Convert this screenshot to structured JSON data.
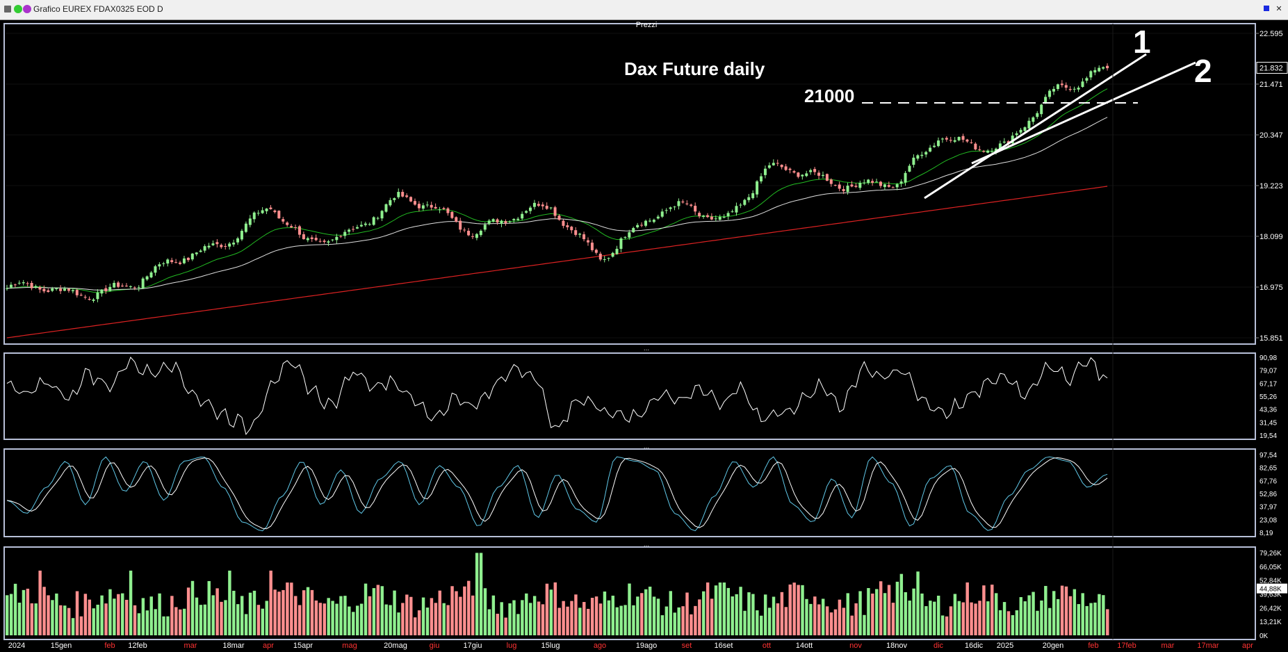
{
  "window": {
    "title": "Grafico EUREX FDAX0325 EOD D"
  },
  "panels": {
    "price_header": "Prezzi",
    "separator": "..."
  },
  "annotations": {
    "title": "Dax Future daily",
    "level_label": "21000",
    "trendline_1": "1",
    "trendline_2": "2"
  },
  "axes": {
    "price_ticks": [
      "22.595",
      "21.471",
      "20.347",
      "19.223",
      "18.099",
      "16.975",
      "15.851"
    ],
    "last_price": "21.832",
    "rsi_ticks": [
      "90,98",
      "79,07",
      "67,17",
      "55,26",
      "43,36",
      "31,45",
      "19,54"
    ],
    "stoch_ticks": [
      "97,54",
      "82,65",
      "67,76",
      "52,86",
      "37,97",
      "23,08",
      "8,19"
    ],
    "volume_ticks": [
      "79,26K",
      "66,05K",
      "52,84K",
      "39,63K",
      "26,42K",
      "13,21K",
      "0K"
    ],
    "last_volume": "44,88K",
    "dates": [
      {
        "label": "2024",
        "color": "#ffffff"
      },
      {
        "label": "15gen",
        "color": "#ffffff"
      },
      {
        "label": "feb",
        "color": "#ff3333"
      },
      {
        "label": "12feb",
        "color": "#ffffff"
      },
      {
        "label": "mar",
        "color": "#ff3333"
      },
      {
        "label": "18mar",
        "color": "#ffffff"
      },
      {
        "label": "apr",
        "color": "#ff3333"
      },
      {
        "label": "15apr",
        "color": "#ffffff"
      },
      {
        "label": "mag",
        "color": "#ff3333"
      },
      {
        "label": "20mag",
        "color": "#ffffff"
      },
      {
        "label": "giu",
        "color": "#ff3333"
      },
      {
        "label": "17giu",
        "color": "#ffffff"
      },
      {
        "label": "lug",
        "color": "#ff3333"
      },
      {
        "label": "15lug",
        "color": "#ffffff"
      },
      {
        "label": "ago",
        "color": "#ff3333"
      },
      {
        "label": "19ago",
        "color": "#ffffff"
      },
      {
        "label": "set",
        "color": "#ff3333"
      },
      {
        "label": "16set",
        "color": "#ffffff"
      },
      {
        "label": "ott",
        "color": "#ff3333"
      },
      {
        "label": "14ott",
        "color": "#ffffff"
      },
      {
        "label": "nov",
        "color": "#ff3333"
      },
      {
        "label": "18nov",
        "color": "#ffffff"
      },
      {
        "label": "dic",
        "color": "#ff3333"
      },
      {
        "label": "16dic",
        "color": "#ffffff"
      },
      {
        "label": "2025",
        "color": "#ffffff"
      },
      {
        "label": "20gen",
        "color": "#ffffff"
      },
      {
        "label": "feb",
        "color": "#ff3333"
      },
      {
        "label": "17feb",
        "color": "#ff3333"
      },
      {
        "label": "mar",
        "color": "#ff3333"
      },
      {
        "label": "17mar",
        "color": "#ff3333"
      },
      {
        "label": "apr",
        "color": "#ff3333"
      }
    ]
  },
  "chart_data": [
    {
      "type": "candlestick",
      "title": "Dax Future daily",
      "ylim": [
        15851,
        22595
      ],
      "close_keypoints": [
        {
          "x": "2024",
          "y": 16950
        },
        {
          "x": "15gen",
          "y": 16820
        },
        {
          "x": "feb",
          "y": 17000
        },
        {
          "x": "12feb",
          "y": 17050
        },
        {
          "x": "mar",
          "y": 17700
        },
        {
          "x": "18mar",
          "y": 18200
        },
        {
          "x": "apr",
          "y": 18700
        },
        {
          "x": "15apr",
          "y": 17900
        },
        {
          "x": "mag",
          "y": 18300
        },
        {
          "x": "20mag",
          "y": 18850
        },
        {
          "x": "giu",
          "y": 18700
        },
        {
          "x": "17giu",
          "y": 18300
        },
        {
          "x": "lug",
          "y": 18500
        },
        {
          "x": "15lug",
          "y": 18700
        },
        {
          "x": "ago",
          "y": 17700
        },
        {
          "x": "19ago",
          "y": 18400
        },
        {
          "x": "set",
          "y": 18800
        },
        {
          "x": "16set",
          "y": 18500
        },
        {
          "x": "ott",
          "y": 19500
        },
        {
          "x": "14ott",
          "y": 19500
        },
        {
          "x": "nov",
          "y": 19300
        },
        {
          "x": "18nov",
          "y": 19150
        },
        {
          "x": "dic",
          "y": 20400
        },
        {
          "x": "16dic",
          "y": 20200
        },
        {
          "x": "2025",
          "y": 20000
        },
        {
          "x": "20gen",
          "y": 21300
        },
        {
          "x": "feb",
          "y": 21850
        }
      ],
      "series": [
        {
          "name": "",
          "color": "#22bb22"
        },
        {
          "name": "",
          "color": "#e0e0e0"
        },
        {
          "name": "",
          "color": "#dd2222"
        }
      ],
      "horizontal_line": 21000
    },
    {
      "type": "line",
      "ylim": [
        19.54,
        90.98
      ],
      "values": [
        65,
        55,
        70,
        52,
        78,
        62,
        90,
        75,
        88,
        60,
        45,
        35,
        25,
        70,
        85,
        60,
        45,
        80,
        65,
        70,
        50,
        35,
        55,
        45,
        65,
        85,
        70,
        20,
        55,
        45,
        40,
        35,
        60,
        50,
        65,
        45,
        65,
        35,
        40,
        50,
        65,
        45,
        85,
        70,
        80,
        50,
        40,
        50,
        65,
        75,
        55,
        85,
        70,
        90,
        70
      ]
    },
    {
      "type": "line",
      "ylim": [
        8.19,
        97.54
      ],
      "values": [
        45,
        30,
        60,
        90,
        40,
        95,
        55,
        90,
        45,
        90,
        95,
        60,
        20,
        10,
        50,
        90,
        40,
        80,
        30,
        70,
        90,
        40,
        85,
        60,
        15,
        60,
        85,
        25,
        75,
        35,
        20,
        95,
        90,
        80,
        30,
        10,
        50,
        90,
        60,
        95,
        40,
        20,
        70,
        25,
        95,
        65,
        15,
        70,
        85,
        30,
        10,
        50,
        80,
        95,
        90,
        60,
        75
      ]
    },
    {
      "type": "bar",
      "ylim": [
        0,
        79260
      ],
      "last_value": 44880,
      "colors": [
        "#ff8f8f",
        "#8fef8f"
      ]
    }
  ]
}
